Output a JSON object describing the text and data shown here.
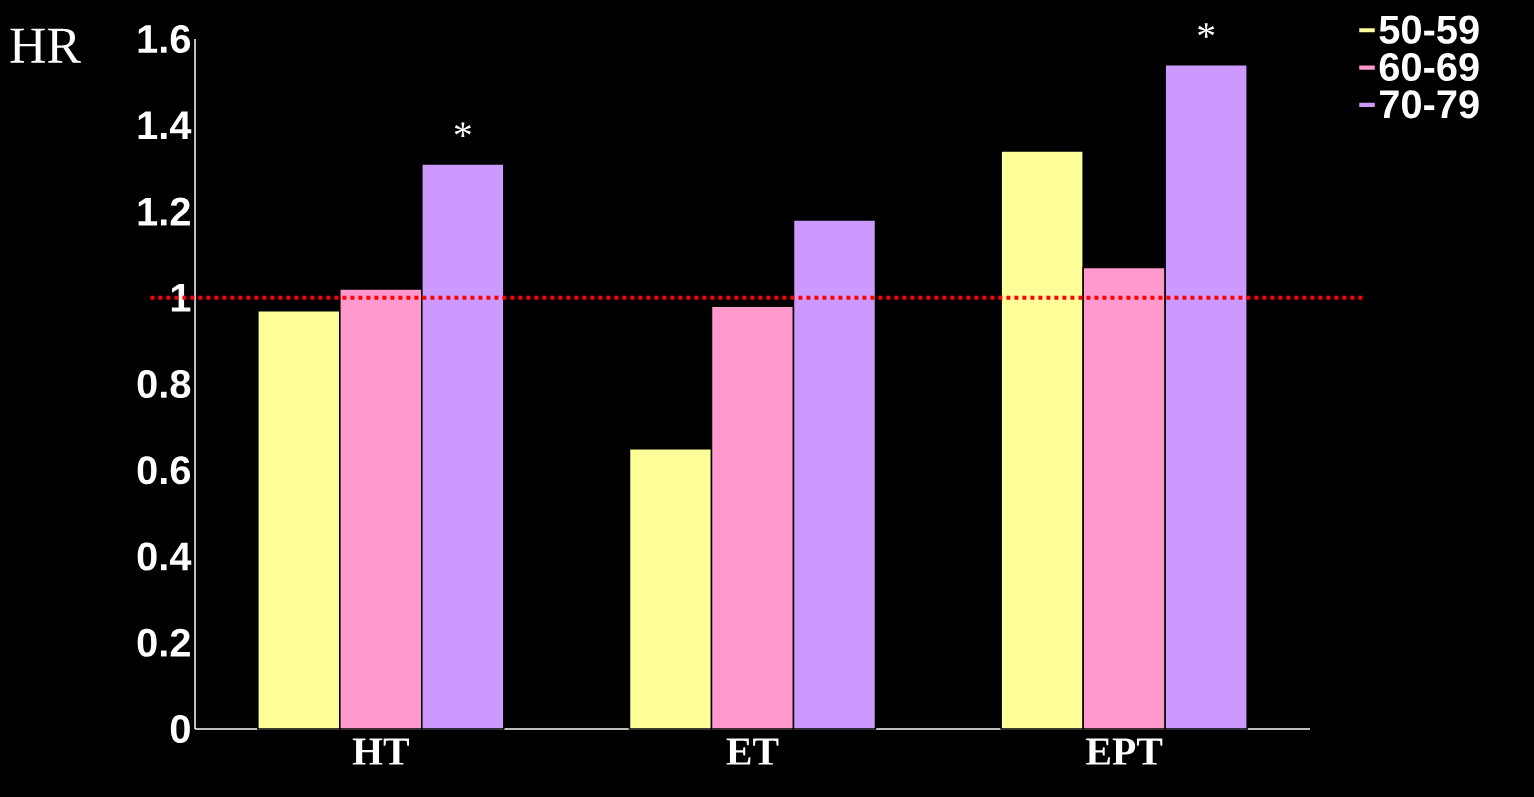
{
  "chart_data": {
    "type": "bar",
    "ylabel": "HR",
    "categories": [
      "HT",
      "ET",
      "EPT"
    ],
    "series": [
      {
        "name": "50-59",
        "color": "#ffff99",
        "values": [
          0.97,
          0.65,
          1.34
        ]
      },
      {
        "name": "60-69",
        "color": "#ff99cc",
        "values": [
          1.02,
          0.98,
          1.07
        ]
      },
      {
        "name": "70-79",
        "color": "#cc99ff",
        "values": [
          1.31,
          1.18,
          1.54
        ]
      }
    ],
    "ylim": [
      0,
      1.6
    ],
    "yticks": [
      0,
      0.2,
      0.4,
      0.6,
      0.8,
      1,
      1.2,
      1.4,
      1.6
    ],
    "ref_lines": [
      {
        "axis": "y",
        "value": 1,
        "color": "#ff0000",
        "line_style": "dotted"
      }
    ],
    "annotations": [
      "*",
      "*"
    ],
    "legend": "top right",
    "grid": false
  }
}
